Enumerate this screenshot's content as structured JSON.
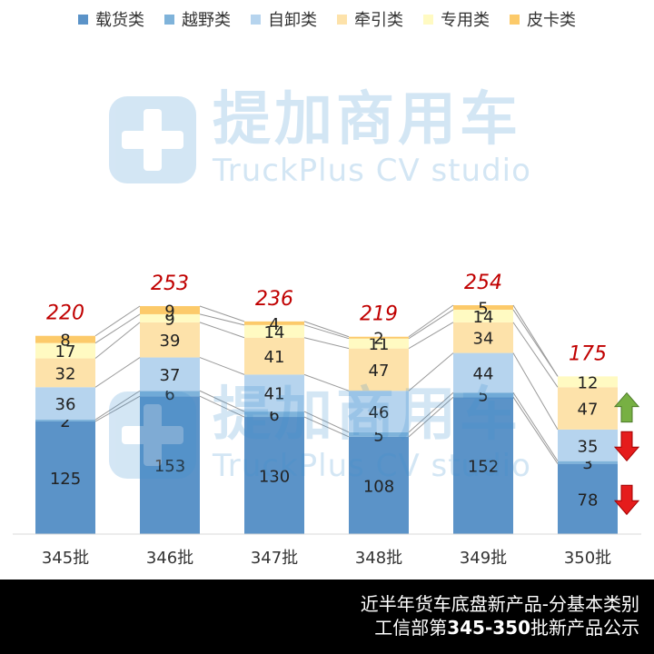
{
  "chart_data": {
    "type": "bar",
    "stacked": true,
    "categories": [
      "345批",
      "346批",
      "347批",
      "348批",
      "349批",
      "350批"
    ],
    "series": [
      {
        "name": "载货类",
        "color": "#5b93c8",
        "values": [
          125,
          153,
          130,
          108,
          152,
          78
        ]
      },
      {
        "name": "越野类",
        "color": "#7fb3da",
        "values": [
          2,
          6,
          6,
          5,
          5,
          3
        ]
      },
      {
        "name": "自卸类",
        "color": "#b6d4ee",
        "values": [
          36,
          37,
          41,
          46,
          44,
          35
        ]
      },
      {
        "name": "牵引类",
        "color": "#fde2aa",
        "values": [
          32,
          39,
          41,
          47,
          34,
          47
        ]
      },
      {
        "name": "专用类",
        "color": "#fffac2",
        "values": [
          17,
          9,
          14,
          11,
          14,
          12
        ]
      },
      {
        "name": "皮卡类",
        "color": "#fcca6a",
        "values": [
          8,
          9,
          4,
          2,
          5,
          0
        ]
      }
    ],
    "totals": [
      "220",
      "253",
      "236",
      "219",
      "254",
      "175"
    ],
    "ylim": [
      0,
      260
    ],
    "legend_position": "top",
    "grid": false
  },
  "trend_arrows": [
    {
      "series": "牵引类",
      "direction": "up",
      "color": "#77b043"
    },
    {
      "series": "自卸类",
      "direction": "down",
      "color": "#e51c1c"
    },
    {
      "series": "载货类",
      "direction": "down",
      "color": "#e51c1c"
    }
  ],
  "watermark": {
    "cn": "提加商用车",
    "en": "TruckPlus CV studio"
  },
  "footer": {
    "line1": "近半年货车底盘新产品-分基本类别",
    "line2_prefix": "工信部第",
    "line2_bold": "345-350",
    "line2_suffix": "批新产品公示"
  }
}
